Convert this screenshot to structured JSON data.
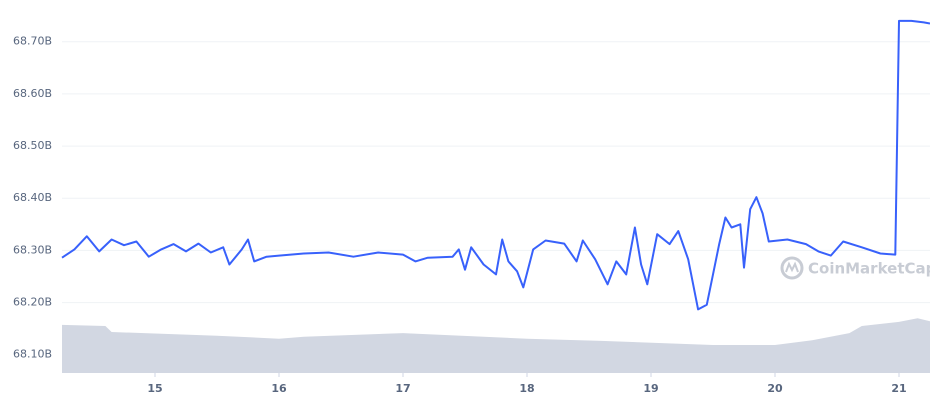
{
  "chart_data": {
    "type": "line",
    "xlim": [
      14.25,
      21.25
    ],
    "xticks": [
      15,
      16,
      17,
      18,
      19,
      20,
      21
    ],
    "ylim": [
      68.065,
      68.78
    ],
    "yticks": [
      {
        "value": 68.1,
        "label": "68.10B"
      },
      {
        "value": 68.2,
        "label": "68.20B"
      },
      {
        "value": 68.3,
        "label": "68.30B"
      },
      {
        "value": 68.4,
        "label": "68.40B"
      },
      {
        "value": 68.5,
        "label": "68.50B"
      },
      {
        "value": 68.6,
        "label": "68.60B"
      },
      {
        "value": 68.7,
        "label": "68.70B"
      }
    ],
    "y2lim": [
      0,
      100
    ],
    "grid": true,
    "watermark": "CoinMarketCap",
    "series": [
      {
        "color": "#3861fb",
        "x": [
          14.25,
          14.35,
          14.45,
          14.55,
          14.65,
          14.75,
          14.85,
          14.95,
          15.05,
          15.15,
          15.25,
          15.35,
          15.45,
          15.55,
          15.6,
          15.7,
          15.75,
          15.8,
          15.9,
          16.0,
          16.2,
          16.4,
          16.6,
          16.8,
          17.0,
          17.1,
          17.2,
          17.4,
          17.45,
          17.5,
          17.55,
          17.65,
          17.75,
          17.8,
          17.85,
          17.92,
          17.97,
          18.05,
          18.15,
          18.3,
          18.4,
          18.45,
          18.55,
          18.65,
          18.72,
          18.8,
          18.87,
          18.92,
          18.97,
          19.05,
          19.15,
          19.22,
          19.3,
          19.38,
          19.45,
          19.5,
          19.55,
          19.6,
          19.65,
          19.72,
          19.75,
          19.8,
          19.85,
          19.9,
          19.95,
          20.1,
          20.25,
          20.35,
          20.45,
          20.55,
          20.7,
          20.85,
          20.97,
          21.0,
          21.1,
          21.2,
          21.25
        ],
        "values": [
          68.286,
          68.302,
          68.327,
          68.298,
          68.321,
          68.31,
          68.317,
          68.288,
          68.302,
          68.312,
          68.298,
          68.313,
          68.296,
          68.306,
          68.273,
          68.302,
          68.321,
          68.279,
          68.288,
          68.29,
          68.294,
          68.296,
          68.288,
          68.296,
          68.292,
          68.279,
          68.286,
          68.288,
          68.302,
          68.263,
          68.306,
          68.273,
          68.254,
          68.321,
          68.279,
          68.26,
          68.229,
          68.302,
          68.319,
          68.313,
          68.279,
          68.319,
          68.283,
          68.235,
          68.279,
          68.254,
          68.344,
          68.273,
          68.235,
          68.331,
          68.312,
          68.337,
          68.283,
          68.187,
          68.196,
          68.254,
          68.312,
          68.363,
          68.344,
          68.35,
          68.267,
          68.379,
          68.402,
          68.371,
          68.317,
          68.321,
          68.312,
          68.298,
          68.29,
          68.317,
          68.306,
          68.294,
          68.292,
          68.74,
          68.74,
          68.737,
          68.735
        ]
      },
      {
        "color": "#d2d7e2",
        "axis": "y2",
        "x": [
          14.25,
          14.6,
          14.65,
          15.5,
          16.0,
          16.2,
          17.0,
          18.0,
          18.6,
          19.5,
          20.0,
          20.3,
          20.6,
          20.7,
          21.0,
          21.15,
          21.25
        ],
        "values": [
          12.9,
          12.6,
          11.0,
          10.0,
          9.2,
          9.7,
          10.7,
          9.2,
          8.6,
          7.5,
          7.5,
          8.8,
          10.7,
          12.6,
          13.7,
          14.7,
          13.9
        ]
      }
    ]
  }
}
